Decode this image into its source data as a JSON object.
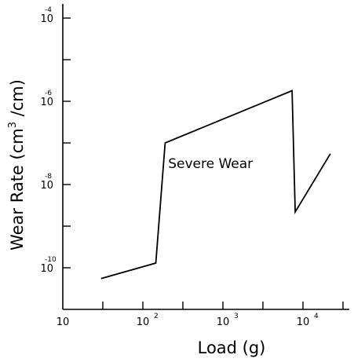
{
  "chart_data": {
    "type": "line",
    "xlabel": "Load (g)",
    "ylabel_main": "Wear Rate (cm",
    "ylabel_sup": "3",
    "ylabel_tail": " /cm)",
    "x_scale": "log",
    "y_scale": "log",
    "xlim": [
      10,
      30000
    ],
    "ylim": [
      1e-11,
      0.0001
    ],
    "x_ticks": [
      {
        "value": 10,
        "base": "10",
        "exp": ""
      },
      {
        "value": 100,
        "base": "10",
        "exp": "2"
      },
      {
        "value": 1000,
        "base": "10",
        "exp": "3"
      },
      {
        "value": 10000,
        "base": "10",
        "exp": "4"
      }
    ],
    "y_ticks": [
      {
        "value": 0.0001,
        "base": "10",
        "exp": "-4"
      },
      {
        "value": 1e-06,
        "base": "10",
        "exp": "-6"
      },
      {
        "value": 1e-08,
        "base": "10",
        "exp": "-8"
      },
      {
        "value": 1e-10,
        "base": "10",
        "exp": "-10"
      }
    ],
    "series": [
      {
        "points": [
          {
            "x": 30,
            "y": 5.5e-11
          },
          {
            "x": 145,
            "y": 1.3e-10
          },
          {
            "x": 190,
            "y": 1e-07
          },
          {
            "x": 7300,
            "y": 1.8e-06
          },
          {
            "x": 8000,
            "y": 2.2e-09
          },
          {
            "x": 22000,
            "y": 5.5e-08
          }
        ]
      }
    ],
    "annotations": [
      {
        "text": "Severe Wear",
        "x": 700,
        "y": 2.5e-08
      }
    ],
    "grid": false,
    "legend": "none"
  }
}
